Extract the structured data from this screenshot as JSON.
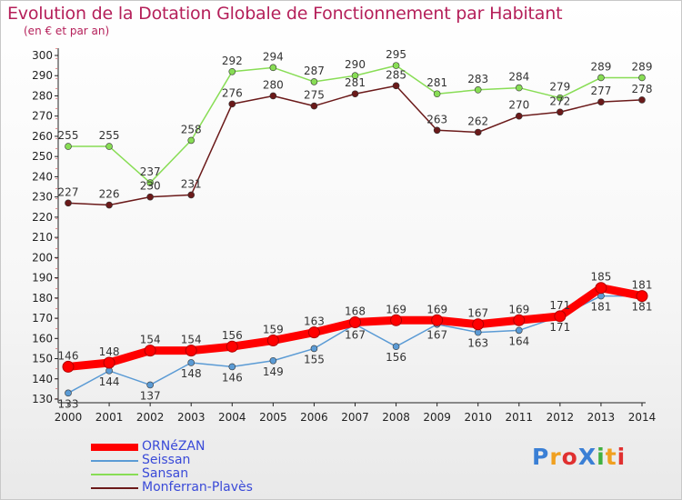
{
  "title": "Evolution de la Dotation Globale de Fonctionnement par Habitant",
  "subtitle": "(en € et par an)",
  "logo": "ProXiti",
  "colors": {
    "title": "#b5205a",
    "legend_text": "#3a4ad8",
    "axis": "#222222"
  },
  "chart_data": {
    "type": "line",
    "title": "Evolution de la Dotation Globale de Fonctionnement par Habitant",
    "subtitle": "(en € et par an)",
    "xlabel": "",
    "ylabel": "",
    "x": [
      "2000",
      "2001",
      "2002",
      "2003",
      "2004",
      "2005",
      "2006",
      "2007",
      "2008",
      "2009",
      "2010",
      "2011",
      "2012",
      "2013",
      "2014"
    ],
    "ylim": [
      130,
      300
    ],
    "yticks": [
      130,
      140,
      150,
      160,
      170,
      180,
      190,
      200,
      210,
      220,
      230,
      240,
      250,
      260,
      270,
      280,
      290,
      300
    ],
    "grid": false,
    "legend_position": "bottom-left",
    "series": [
      {
        "name": "ORNéZAN",
        "color": "#ff0000",
        "values": [
          146,
          148,
          154,
          154,
          156,
          159,
          163,
          168,
          169,
          169,
          167,
          169,
          171,
          185,
          181
        ]
      },
      {
        "name": "Seissan",
        "color": "#5b9bd5",
        "values": [
          133,
          144,
          137,
          148,
          146,
          149,
          155,
          167,
          156,
          167,
          163,
          164,
          171,
          181,
          181
        ]
      },
      {
        "name": "Sansan",
        "color": "#88dd55",
        "values": [
          255,
          255,
          237,
          258,
          292,
          294,
          287,
          290,
          295,
          281,
          283,
          284,
          279,
          289,
          289
        ]
      },
      {
        "name": "Monferran-Plavès",
        "color": "#6b1a1a",
        "values": [
          227,
          226,
          230,
          231,
          276,
          280,
          275,
          281,
          285,
          263,
          262,
          270,
          272,
          277,
          278
        ]
      }
    ]
  }
}
